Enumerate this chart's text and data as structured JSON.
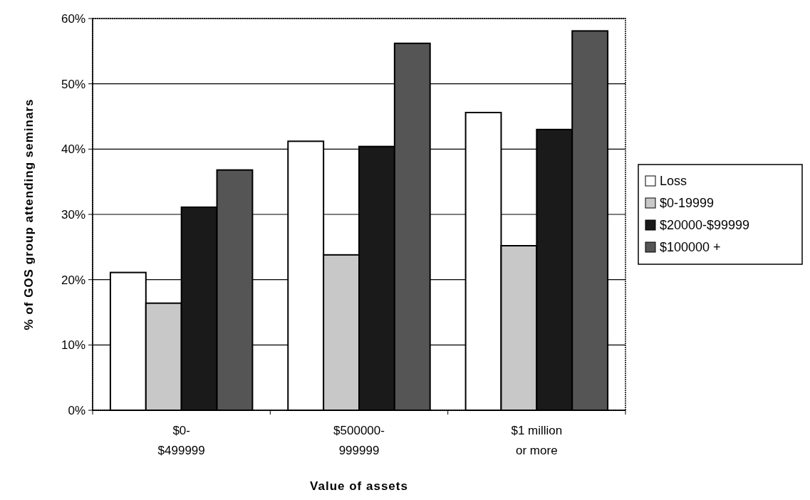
{
  "chart_data": {
    "type": "bar",
    "xlabel": "Value of assets",
    "ylabel": "% of GOS group attending seminars",
    "categories": [
      "$0-\n$499999",
      "$500000-\n999999",
      "$1 million\nor more"
    ],
    "series": [
      {
        "name": "Loss",
        "color": "#ffffff",
        "values": [
          21.1,
          41.2,
          45.6
        ]
      },
      {
        "name": "$0-19999",
        "color": "#c8c8c8",
        "values": [
          16.4,
          23.8,
          25.2
        ]
      },
      {
        "name": "$20000-$99999",
        "color": "#1a1a1a",
        "values": [
          31.1,
          40.4,
          43.0
        ]
      },
      {
        "name": "$100000 +",
        "color": "#555555",
        "values": [
          36.8,
          56.2,
          58.1
        ]
      }
    ],
    "ylim": [
      0,
      60
    ],
    "yticks": [
      {
        "value": 0,
        "label": "0%"
      },
      {
        "value": 10,
        "label": "10%"
      },
      {
        "value": 20,
        "label": "20%"
      },
      {
        "value": 30,
        "label": "30%"
      },
      {
        "value": 40,
        "label": "40%"
      },
      {
        "value": 50,
        "label": "50%"
      },
      {
        "value": 60,
        "label": "60%"
      }
    ],
    "grid": "y",
    "legend": "right"
  }
}
